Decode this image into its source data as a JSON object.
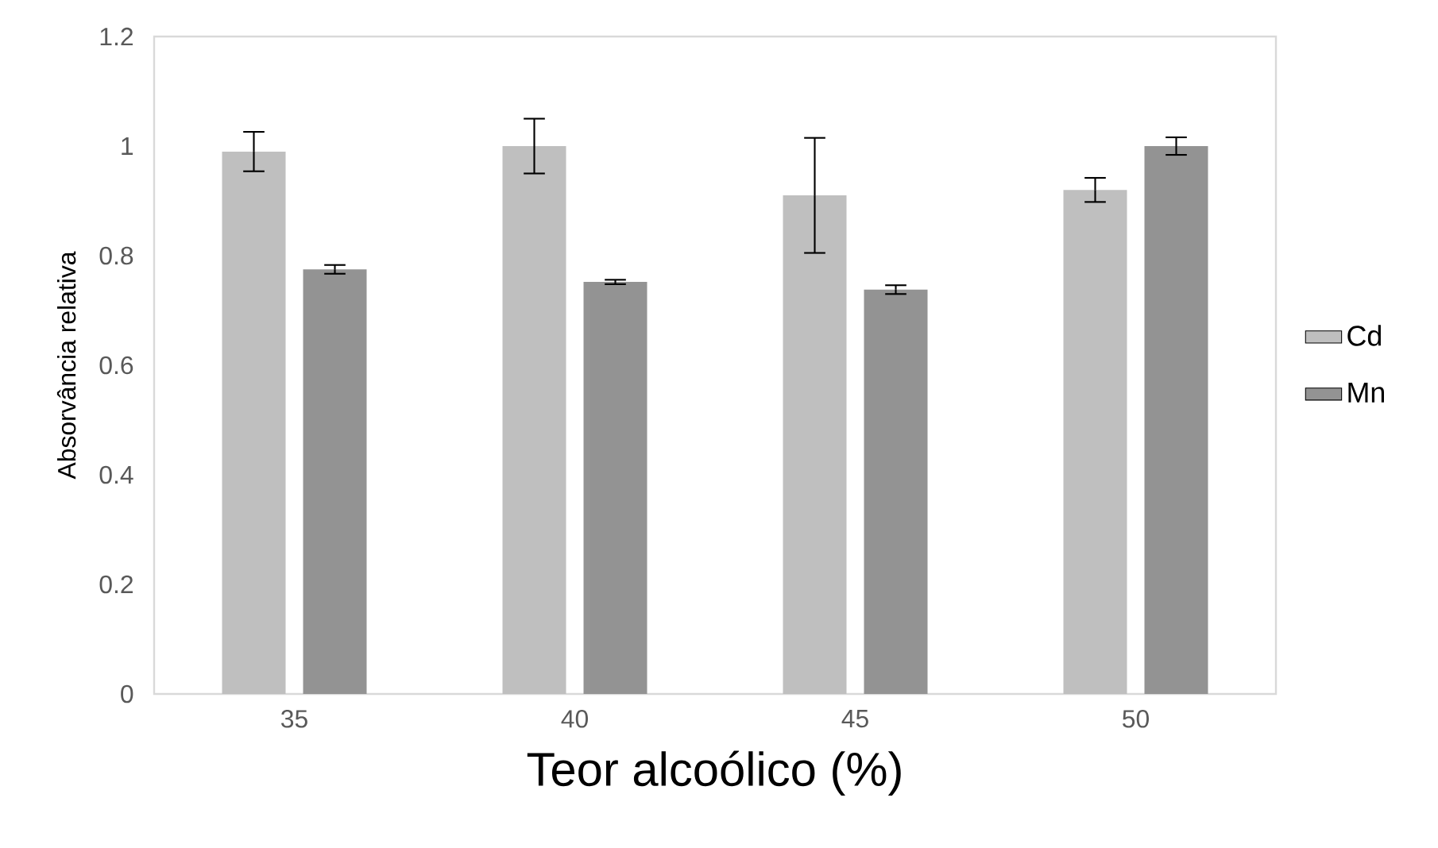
{
  "chart_data": {
    "type": "bar",
    "xlabel": "Teor alcoólico (%)",
    "ylabel": "Absorvância relativa",
    "categories": [
      "35",
      "40",
      "45",
      "50"
    ],
    "series": [
      {
        "name": "Cd",
        "color": "#bfbfbf",
        "values": [
          0.99,
          1.0,
          0.91,
          0.92
        ],
        "errors": [
          0.036,
          0.05,
          0.105,
          0.022
        ]
      },
      {
        "name": "Mn",
        "color": "#939393",
        "values": [
          0.775,
          0.752,
          0.738,
          1.0
        ],
        "errors": [
          0.008,
          0.004,
          0.008,
          0.016
        ]
      }
    ],
    "ylim": [
      0,
      1.2
    ],
    "yticks": [
      0,
      0.2,
      0.4,
      0.6,
      0.8,
      1,
      1.2
    ],
    "grid": false,
    "legend": "right"
  }
}
